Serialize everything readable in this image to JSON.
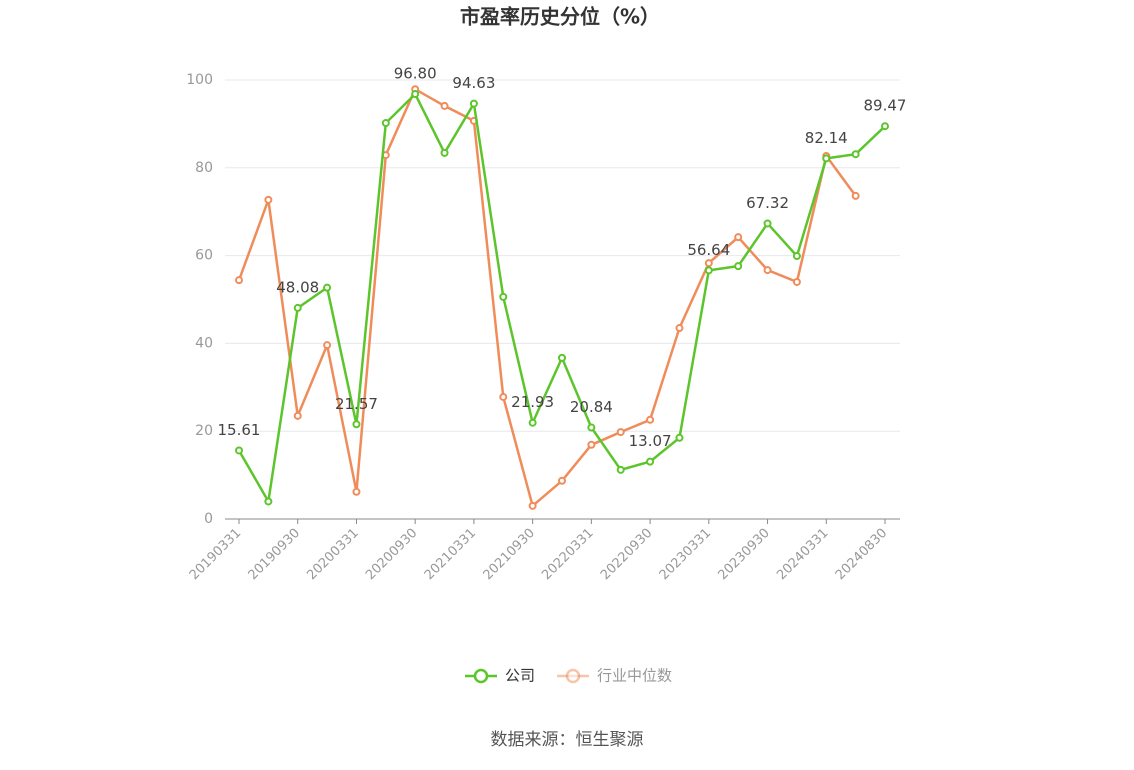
{
  "chart_data": {
    "type": "line",
    "title": "市盈率历史分位（%）",
    "categories": [
      "20190331",
      null,
      "20190930",
      null,
      "20200331",
      null,
      "20200930",
      null,
      "20210331",
      null,
      "20210930",
      null,
      "20220331",
      null,
      "20220930",
      null,
      "20230331",
      null,
      "20230930",
      null,
      "20240331",
      null,
      "20240830"
    ],
    "series": [
      {
        "name": "公司",
        "color": "#5cc52c",
        "values": [
          15.61,
          4.0,
          48.08,
          52.7,
          21.57,
          90.2,
          96.8,
          83.4,
          94.63,
          50.6,
          21.93,
          36.7,
          20.84,
          11.2,
          13.07,
          18.5,
          56.64,
          57.6,
          67.32,
          59.9,
          82.14,
          83.1,
          89.47
        ],
        "value_labels": [
          "15.61",
          null,
          "48.08",
          null,
          "21.57",
          null,
          "96.80",
          null,
          "94.63",
          null,
          "21.93",
          null,
          "20.84",
          null,
          "13.07",
          null,
          "56.64",
          null,
          "67.32",
          null,
          "82.14",
          null,
          "89.47"
        ]
      },
      {
        "name": "行业中位数",
        "color": "#f08c5a",
        "values": [
          54.4,
          72.7,
          23.5,
          39.6,
          6.2,
          82.9,
          97.9,
          94.1,
          90.7,
          27.8,
          3.0,
          8.7,
          16.9,
          19.8,
          22.6,
          43.5,
          58.3,
          64.2,
          56.7,
          54.0,
          82.7,
          73.6,
          null
        ]
      }
    ],
    "ylim": [
      0,
      100
    ],
    "yticks": [
      0,
      20,
      40,
      60,
      80,
      100
    ],
    "grid": true,
    "legend": "bottom",
    "source": "数据来源：恒生聚源"
  }
}
